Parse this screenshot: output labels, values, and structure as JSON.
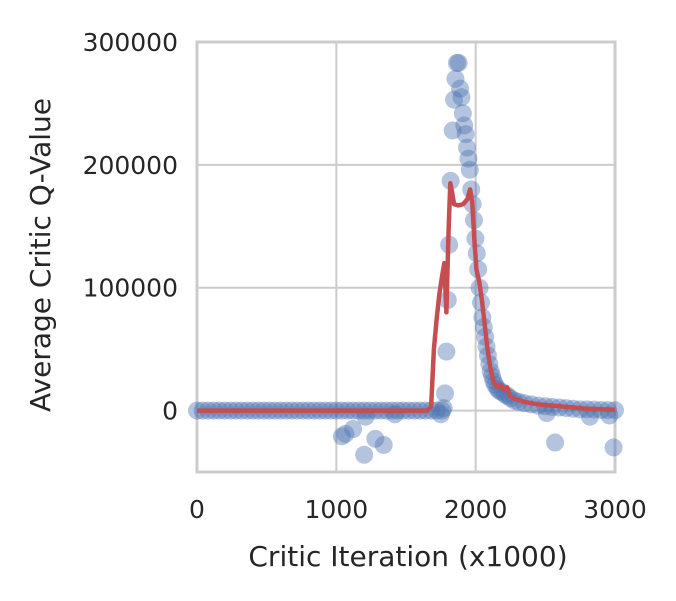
{
  "chart_data": {
    "type": "scatter",
    "xlabel": "Critic Iteration (x1000)",
    "ylabel": "Average Critic Q-Value",
    "xlim": [
      0,
      3000
    ],
    "ylim": [
      -50000,
      300000
    ],
    "x_ticks": [
      "0",
      "1000",
      "2000",
      "3000"
    ],
    "y_ticks": [
      "0",
      "100000",
      "200000",
      "300000"
    ],
    "grid": true,
    "scatter_color": "#4c72b0",
    "line_color": "#c44e52",
    "series": [
      {
        "kind": "scatter",
        "points": [
          [
            0,
            0
          ],
          [
            40,
            0
          ],
          [
            80,
            0
          ],
          [
            120,
            0
          ],
          [
            160,
            0
          ],
          [
            200,
            0
          ],
          [
            240,
            0
          ],
          [
            280,
            0
          ],
          [
            320,
            0
          ],
          [
            360,
            0
          ],
          [
            400,
            0
          ],
          [
            440,
            0
          ],
          [
            480,
            0
          ],
          [
            520,
            0
          ],
          [
            560,
            0
          ],
          [
            600,
            0
          ],
          [
            640,
            0
          ],
          [
            680,
            0
          ],
          [
            720,
            0
          ],
          [
            760,
            0
          ],
          [
            800,
            0
          ],
          [
            840,
            0
          ],
          [
            880,
            0
          ],
          [
            920,
            0
          ],
          [
            960,
            0
          ],
          [
            1000,
            0
          ],
          [
            1040,
            0
          ],
          [
            1080,
            0
          ],
          [
            1120,
            0
          ],
          [
            1160,
            0
          ],
          [
            1200,
            0
          ],
          [
            1240,
            0
          ],
          [
            1280,
            0
          ],
          [
            1320,
            0
          ],
          [
            1360,
            0
          ],
          [
            1400,
            0
          ],
          [
            1440,
            0
          ],
          [
            1480,
            0
          ],
          [
            1520,
            0
          ],
          [
            1560,
            0
          ],
          [
            1600,
            0
          ],
          [
            1640,
            0
          ],
          [
            1680,
            0
          ],
          [
            1720,
            0
          ],
          [
            1760,
            0
          ],
          [
            1040,
            -21000
          ],
          [
            1065,
            -19000
          ],
          [
            1120,
            -15000
          ],
          [
            1200,
            -36000
          ],
          [
            1280,
            -23000
          ],
          [
            1340,
            -28000
          ],
          [
            1210,
            -5000
          ],
          [
            1420,
            -3000
          ],
          [
            1750,
            -3000
          ],
          [
            1770,
            2000
          ],
          [
            1780,
            14000
          ],
          [
            1790,
            48000
          ],
          [
            1800,
            90000
          ],
          [
            1810,
            135000
          ],
          [
            1820,
            187000
          ],
          [
            1835,
            228000
          ],
          [
            1845,
            253000
          ],
          [
            1855,
            270000
          ],
          [
            1865,
            283000
          ],
          [
            1878,
            283000
          ],
          [
            1888,
            262000
          ],
          [
            1898,
            255000
          ],
          [
            1908,
            242000
          ],
          [
            1918,
            232000
          ],
          [
            1928,
            225000
          ],
          [
            1938,
            214000
          ],
          [
            1948,
            205000
          ],
          [
            1958,
            196000
          ],
          [
            1968,
            180000
          ],
          [
            1978,
            168000
          ],
          [
            1988,
            155000
          ],
          [
            1998,
            140000
          ],
          [
            2008,
            128000
          ],
          [
            2018,
            115000
          ],
          [
            2028,
            100000
          ],
          [
            2038,
            88000
          ],
          [
            2048,
            76000
          ],
          [
            2058,
            68000
          ],
          [
            2068,
            60000
          ],
          [
            2078,
            52000
          ],
          [
            2088,
            45000
          ],
          [
            2098,
            38000
          ],
          [
            2108,
            32000
          ],
          [
            2118,
            28000
          ],
          [
            2128,
            24000
          ],
          [
            2140,
            21000
          ],
          [
            2155,
            18000
          ],
          [
            2170,
            16000
          ],
          [
            2190,
            15000
          ],
          [
            2210,
            13000
          ],
          [
            2230,
            12000
          ],
          [
            2250,
            10000
          ],
          [
            2280,
            8000
          ],
          [
            2310,
            7000
          ],
          [
            2350,
            6000
          ],
          [
            2400,
            5000
          ],
          [
            2450,
            4000
          ],
          [
            2500,
            3500
          ],
          [
            2550,
            3000
          ],
          [
            2600,
            2500
          ],
          [
            2650,
            2000
          ],
          [
            2700,
            1500
          ],
          [
            2750,
            1000
          ],
          [
            2800,
            1000
          ],
          [
            2850,
            800
          ],
          [
            2900,
            500
          ],
          [
            2950,
            400
          ],
          [
            3000,
            300
          ],
          [
            2510,
            -2000
          ],
          [
            2570,
            -26000
          ],
          [
            2820,
            -5000
          ],
          [
            2960,
            -4000
          ],
          [
            2990,
            -30000
          ]
        ]
      },
      {
        "kind": "line",
        "points": [
          [
            0,
            0
          ],
          [
            500,
            0
          ],
          [
            1000,
            0
          ],
          [
            1500,
            0
          ],
          [
            1650,
            0
          ],
          [
            1680,
            3000
          ],
          [
            1700,
            50000
          ],
          [
            1720,
            75000
          ],
          [
            1740,
            95000
          ],
          [
            1760,
            110000
          ],
          [
            1775,
            120000
          ],
          [
            1790,
            80000
          ],
          [
            1805,
            145000
          ],
          [
            1818,
            185000
          ],
          [
            1830,
            178000
          ],
          [
            1845,
            168000
          ],
          [
            1875,
            167000
          ],
          [
            1910,
            168000
          ],
          [
            1940,
            172000
          ],
          [
            1960,
            180000
          ],
          [
            1975,
            170000
          ],
          [
            1990,
            140000
          ],
          [
            2005,
            115000
          ],
          [
            2025,
            105000
          ],
          [
            2045,
            90000
          ],
          [
            2065,
            70000
          ],
          [
            2085,
            50000
          ],
          [
            2105,
            35000
          ],
          [
            2125,
            25000
          ],
          [
            2145,
            20000
          ],
          [
            2165,
            19000
          ],
          [
            2180,
            21000
          ],
          [
            2200,
            17000
          ],
          [
            2225,
            19000
          ],
          [
            2245,
            12000
          ],
          [
            2270,
            10000
          ],
          [
            2300,
            9000
          ],
          [
            2350,
            7000
          ],
          [
            2400,
            6000
          ],
          [
            2450,
            5000
          ],
          [
            2500,
            4500
          ],
          [
            2600,
            3500
          ],
          [
            2700,
            2500
          ],
          [
            2800,
            1500
          ],
          [
            2900,
            1000
          ],
          [
            3000,
            500
          ]
        ]
      }
    ]
  }
}
